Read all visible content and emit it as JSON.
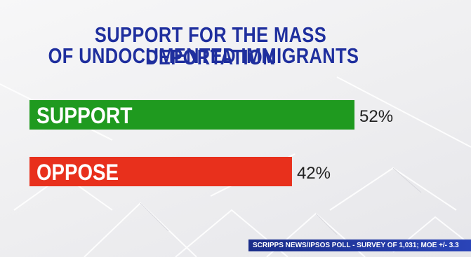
{
  "title_line1": "SUPPORT FOR THE MASS DEPORTATION",
  "title_line2": "OF UNDOCUMENTED IMMIGRANTS",
  "source": "SCRIPPS NEWS/IPSOS POLL - SURVEY OF 1,031; MOE +/- 3.3",
  "chart_data": {
    "type": "bar",
    "orientation": "horizontal",
    "title": "SUPPORT FOR THE MASS DEPORTATION OF UNDOCUMENTED IMMIGRANTS",
    "categories": [
      "SUPPORT",
      "OPPOSE"
    ],
    "values": [
      52,
      42
    ],
    "value_labels": [
      "52%",
      "42%"
    ],
    "colors": [
      "#1f9a1f",
      "#e8301c"
    ],
    "xlabel": "",
    "ylabel": "",
    "xlim": [
      0,
      52
    ],
    "grid": false,
    "legend": "none"
  }
}
